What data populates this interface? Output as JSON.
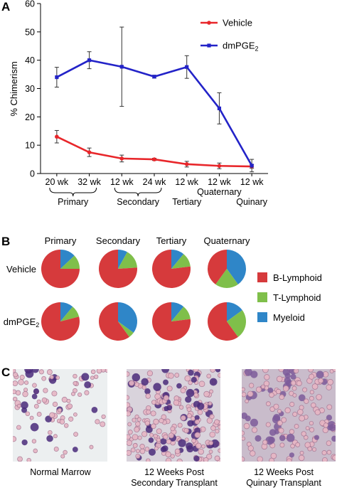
{
  "panels": {
    "a": "A",
    "b": "B",
    "c": "C"
  },
  "chart_data": [
    {
      "type": "line",
      "ylabel": "% Chimerism",
      "ylim": [
        0,
        60
      ],
      "yticks": [
        0,
        10,
        20,
        30,
        40,
        50,
        60
      ],
      "categories": [
        "20 wk",
        "32 wk",
        "12 wk",
        "24 wk",
        "12 wk",
        "12 wk",
        "12 wk"
      ],
      "groups": [
        {
          "label": "Primary",
          "from": 0,
          "to": 1
        },
        {
          "label": "Secondary",
          "from": 2,
          "to": 3
        },
        {
          "label": "Tertiary",
          "from": 4,
          "to": 4
        },
        {
          "label": "Quaternary",
          "from": 5,
          "to": 5
        },
        {
          "label": "Quinary",
          "from": 6,
          "to": 6
        }
      ],
      "legend_placement": "top-right",
      "series": [
        {
          "name": "Vehicle",
          "color": "#e8262a",
          "values": [
            13,
            7.5,
            5.3,
            5,
            3.3,
            2.7,
            2.5
          ],
          "errors": [
            2.2,
            1.5,
            1.2,
            0.4,
            1.0,
            1.0,
            0.6
          ]
        },
        {
          "name": "dmPGE",
          "name_sub": "2",
          "color": "#2323c8",
          "values": [
            34,
            40,
            37.7,
            34.2,
            37.6,
            23,
            2.8
          ],
          "errors": [
            3.5,
            3,
            14,
            0.5,
            4,
            5.5,
            2.2
          ]
        }
      ]
    },
    {
      "type": "pie",
      "columns": [
        "Primary",
        "Secondary",
        "Tertiary",
        "Quaternary"
      ],
      "rows": [
        {
          "label": "Vehicle",
          "label_sub": ""
        },
        {
          "label": "dmPGE",
          "label_sub": "2"
        }
      ],
      "legend": [
        {
          "label": "B-Lymphoid",
          "color": "#d63a3c"
        },
        {
          "label": "T-Lymphoid",
          "color": "#7fbf4a"
        },
        {
          "label": "Myeloid",
          "color": "#2f86c8"
        }
      ],
      "slices": [
        [
          [
            75,
            12,
            13
          ],
          [
            76,
            16,
            8
          ],
          [
            77,
            12,
            11
          ],
          [
            40,
            20,
            40
          ]
        ],
        [
          [
            79,
            10,
            11
          ],
          [
            60,
            5,
            35
          ],
          [
            77,
            12,
            11
          ],
          [
            60,
            25,
            15
          ]
        ]
      ]
    }
  ],
  "micrographs": [
    {
      "caption1": "Normal Marrow",
      "caption2": ""
    },
    {
      "caption1": "12 Weeks Post",
      "caption2": "Secondary Transplant"
    },
    {
      "caption1": "12 Weeks Post",
      "caption2": "Quinary Transplant"
    }
  ]
}
